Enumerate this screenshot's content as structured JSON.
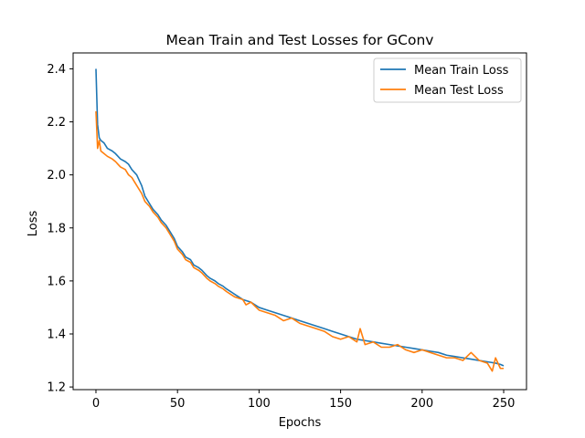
{
  "chart_data": {
    "type": "line",
    "title": "Mean Train and Test Losses for GConv",
    "xlabel": "Epochs",
    "ylabel": "Loss",
    "xlim": [
      -14,
      264
    ],
    "ylim": [
      1.19,
      2.46
    ],
    "xticks": [
      0,
      50,
      100,
      150,
      200,
      250
    ],
    "yticks": [
      1.2,
      1.4,
      1.6,
      1.8,
      2.0,
      2.2,
      2.4
    ],
    "grid": false,
    "legend_position": "top-right",
    "series": [
      {
        "name": "Mean Train Loss",
        "color": "#1f77b4",
        "x": [
          0,
          1,
          2,
          3,
          5,
          7,
          10,
          12,
          15,
          18,
          20,
          22,
          25,
          28,
          30,
          33,
          35,
          38,
          40,
          43,
          45,
          48,
          50,
          53,
          55,
          58,
          60,
          63,
          65,
          68,
          70,
          73,
          75,
          78,
          80,
          85,
          90,
          95,
          100,
          105,
          110,
          115,
          120,
          125,
          130,
          135,
          140,
          145,
          150,
          155,
          160,
          165,
          170,
          175,
          180,
          185,
          190,
          195,
          200,
          205,
          210,
          215,
          220,
          225,
          230,
          235,
          240,
          245,
          248,
          250
        ],
        "y": [
          2.4,
          2.19,
          2.14,
          2.13,
          2.12,
          2.1,
          2.09,
          2.08,
          2.06,
          2.05,
          2.04,
          2.02,
          2.0,
          1.96,
          1.92,
          1.89,
          1.87,
          1.85,
          1.83,
          1.81,
          1.79,
          1.76,
          1.73,
          1.71,
          1.69,
          1.68,
          1.66,
          1.65,
          1.64,
          1.62,
          1.61,
          1.6,
          1.59,
          1.58,
          1.57,
          1.55,
          1.53,
          1.52,
          1.5,
          1.49,
          1.48,
          1.47,
          1.46,
          1.45,
          1.44,
          1.43,
          1.42,
          1.41,
          1.4,
          1.39,
          1.38,
          1.375,
          1.37,
          1.365,
          1.36,
          1.355,
          1.35,
          1.345,
          1.34,
          1.335,
          1.33,
          1.32,
          1.315,
          1.31,
          1.305,
          1.3,
          1.295,
          1.29,
          1.285,
          1.28
        ]
      },
      {
        "name": "Mean Test Loss",
        "color": "#ff7f0e",
        "x": [
          0,
          1,
          2,
          3,
          5,
          7,
          10,
          12,
          15,
          18,
          20,
          22,
          25,
          28,
          30,
          33,
          35,
          38,
          40,
          43,
          45,
          48,
          50,
          53,
          55,
          58,
          60,
          63,
          65,
          68,
          70,
          73,
          75,
          78,
          80,
          85,
          90,
          92,
          95,
          100,
          105,
          110,
          115,
          120,
          125,
          130,
          135,
          140,
          145,
          150,
          155,
          160,
          162,
          165,
          170,
          175,
          180,
          185,
          190,
          195,
          200,
          205,
          210,
          215,
          220,
          225,
          230,
          235,
          240,
          243,
          245,
          248,
          250
        ],
        "y": [
          2.24,
          2.1,
          2.13,
          2.09,
          2.08,
          2.07,
          2.06,
          2.05,
          2.03,
          2.02,
          2.0,
          1.99,
          1.96,
          1.93,
          1.9,
          1.88,
          1.86,
          1.84,
          1.82,
          1.8,
          1.78,
          1.75,
          1.72,
          1.7,
          1.68,
          1.67,
          1.65,
          1.64,
          1.63,
          1.61,
          1.6,
          1.59,
          1.58,
          1.57,
          1.56,
          1.54,
          1.53,
          1.51,
          1.52,
          1.49,
          1.48,
          1.47,
          1.45,
          1.46,
          1.44,
          1.43,
          1.42,
          1.41,
          1.39,
          1.38,
          1.39,
          1.37,
          1.42,
          1.36,
          1.37,
          1.35,
          1.35,
          1.36,
          1.34,
          1.33,
          1.34,
          1.33,
          1.32,
          1.31,
          1.31,
          1.3,
          1.33,
          1.3,
          1.29,
          1.26,
          1.31,
          1.27,
          1.27
        ]
      }
    ]
  }
}
